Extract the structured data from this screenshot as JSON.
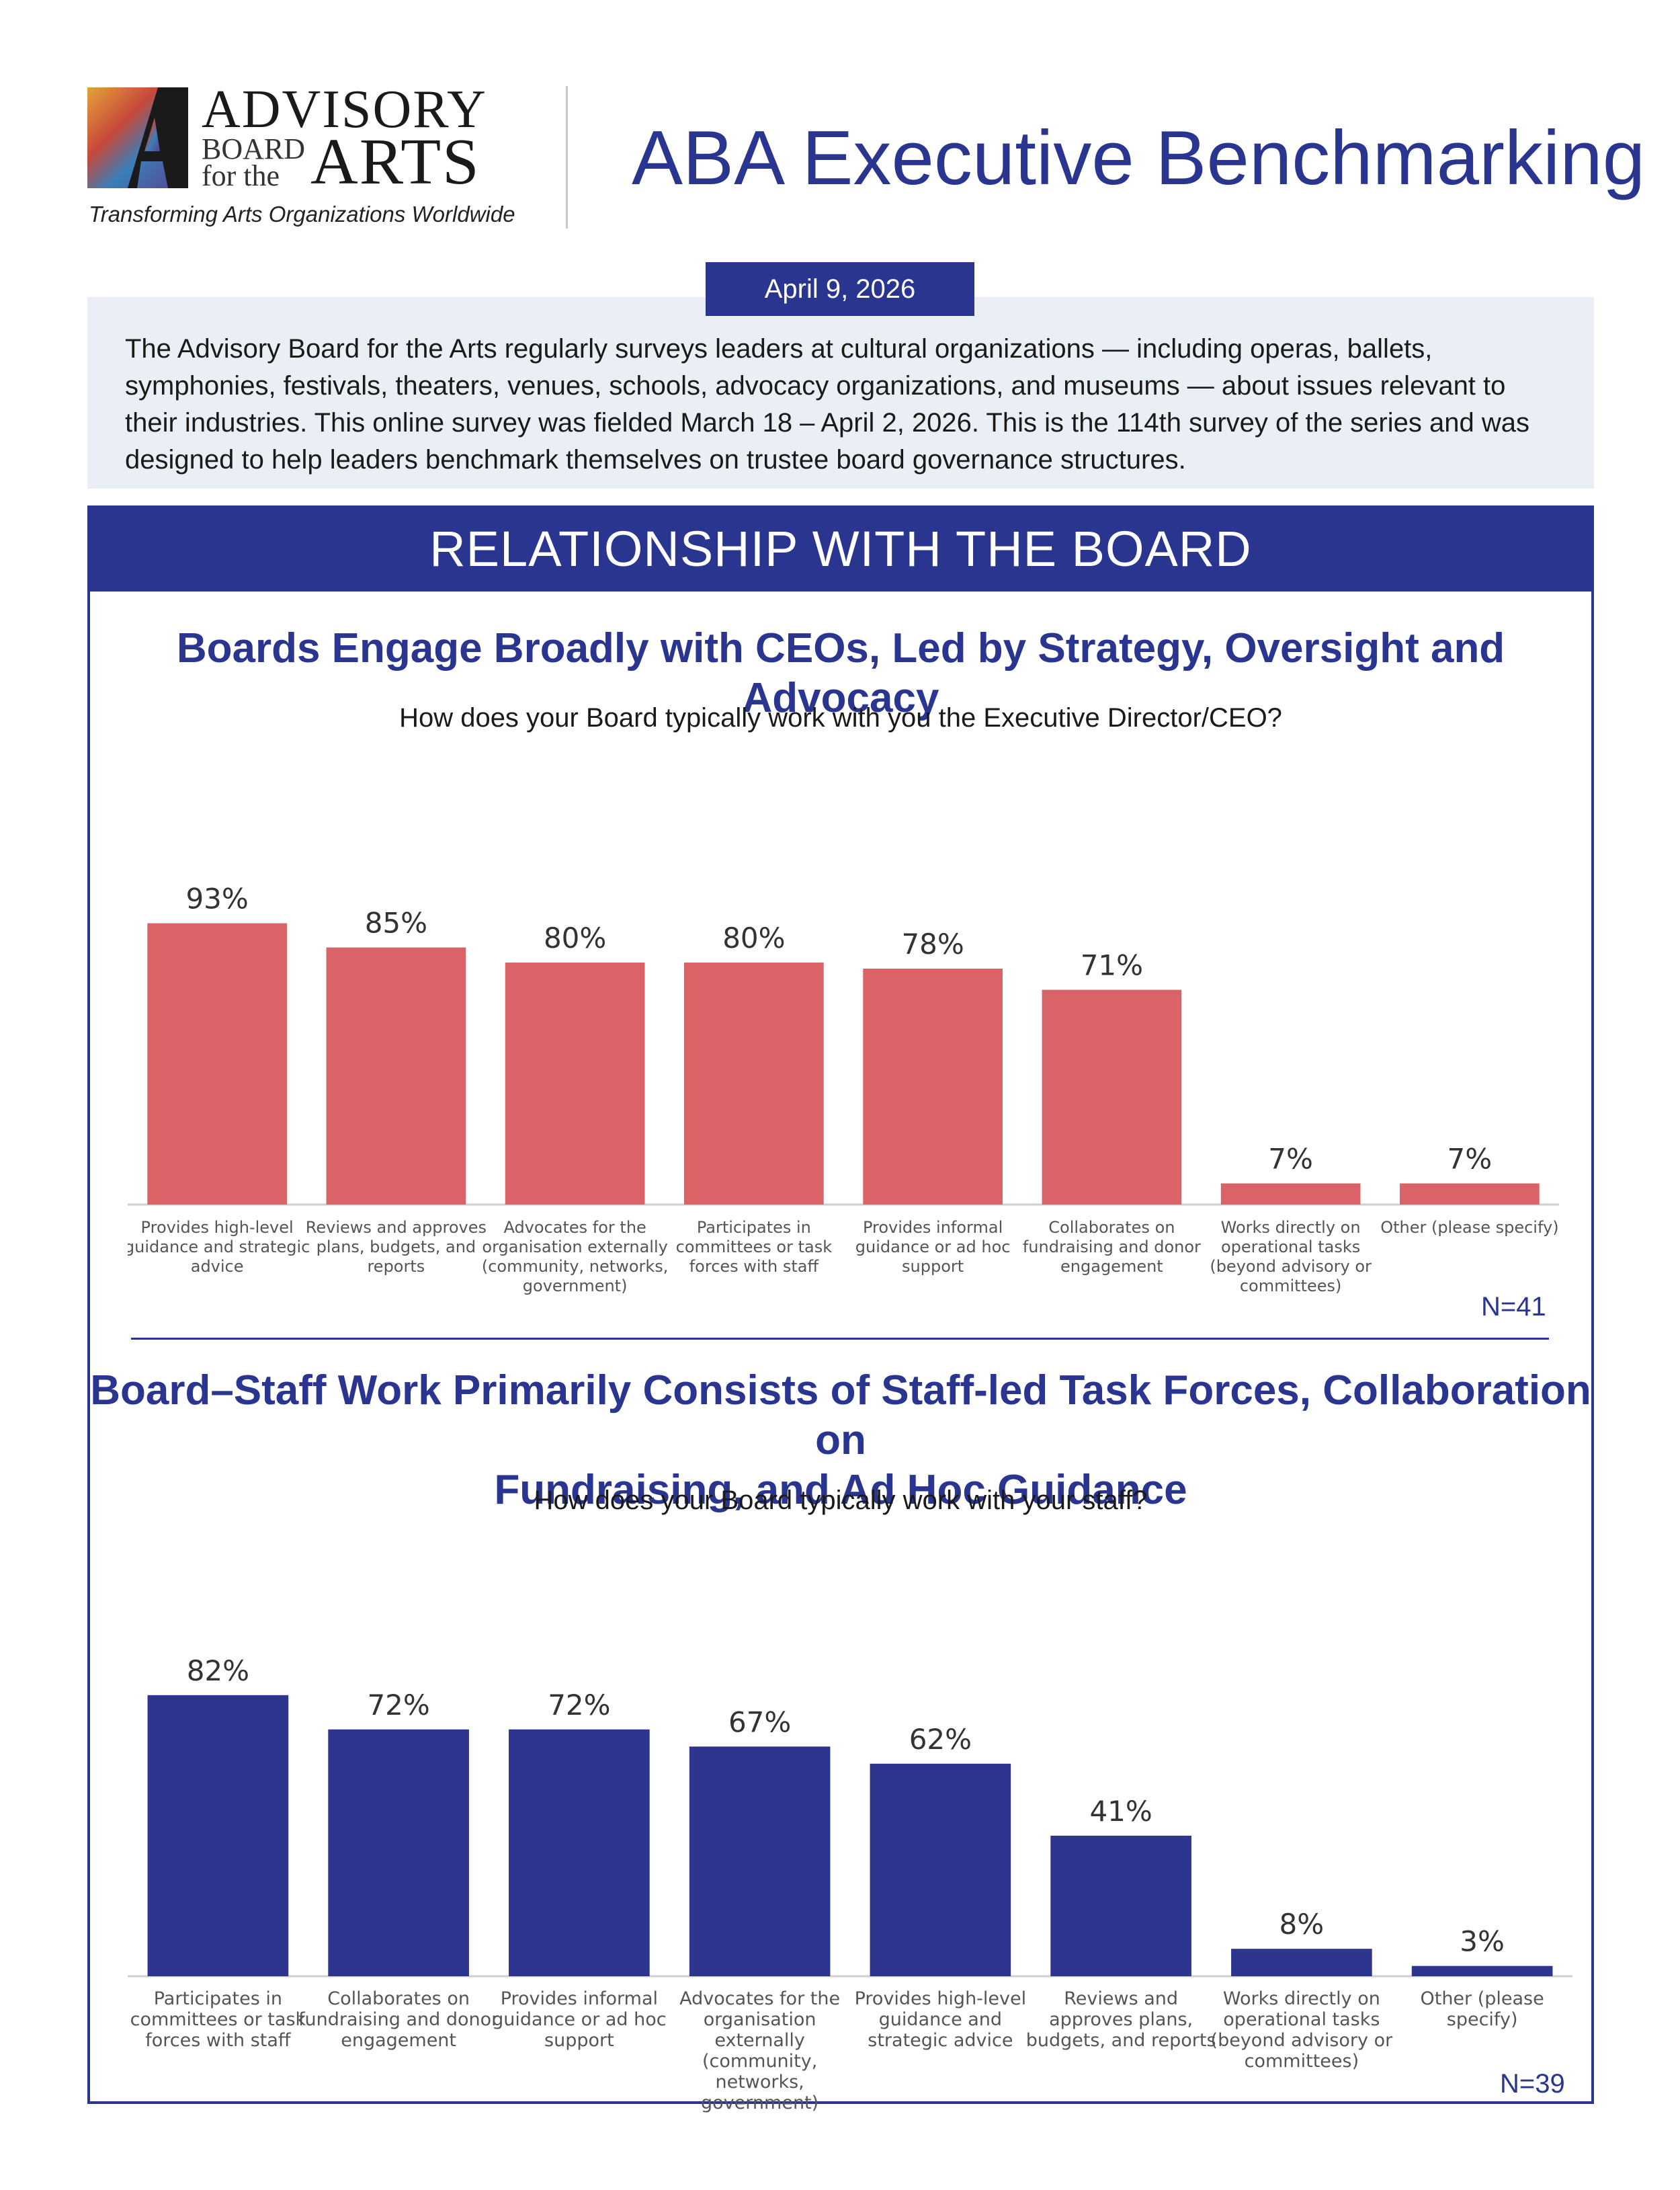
{
  "header": {
    "logo_icon": "advisory-board-logo-icon",
    "brand_line1": "ADVISORY",
    "brand_board": "BOARD",
    "brand_forthe": "for the",
    "brand_arts": "ARTS",
    "tagline": "Transforming Arts Organizations Worldwide",
    "title": "ABA Executive Benchmarking"
  },
  "date": "April 9, 2026",
  "intro": "The Advisory Board for the Arts regularly surveys leaders at cultural organizations — including operas, ballets, symphonies, festivals, theaters, venues, schools, advocacy organizations, and museums — about issues relevant to their industries. This online survey was fielded March 18 – April 2, 2026. This is the 114th survey of the series and was designed to help leaders benchmark themselves on trustee board governance structures.",
  "section_title": "RELATIONSHIP WITH THE BOARD",
  "colors": {
    "brand_blue": "#2a3590",
    "chart1_bar": "#d96366",
    "chart2_bar": "#2d358f"
  },
  "chart_data": [
    {
      "type": "bar",
      "title": "Boards Engage Broadly with CEOs, Led by Strategy, Oversight and Advocacy",
      "subtitle": "How does your Board typically work with you the Executive Director/CEO?",
      "categories": [
        "Provides high-level guidance and strategic advice",
        "Reviews and approves plans, budgets, and reports",
        "Advocates for the organisation externally (community, networks, government)",
        "Participates in committees or task forces with staff",
        "Provides informal guidance or ad hoc support",
        "Collaborates on fundraising and donor engagement",
        "Works directly on operational tasks (beyond advisory or committees)",
        "Other (please specify)"
      ],
      "category_lines": [
        [
          "Provides high-level",
          "guidance and strategic",
          "advice"
        ],
        [
          "Reviews and approves",
          "plans, budgets, and",
          "reports"
        ],
        [
          "Advocates for the",
          "organisation externally",
          "(community, networks,",
          "government)"
        ],
        [
          "Participates in",
          "committees or task",
          "forces with staff"
        ],
        [
          "Provides informal",
          "guidance or ad hoc",
          "support"
        ],
        [
          "Collaborates on",
          "fundraising and donor",
          "engagement"
        ],
        [
          "Works directly on",
          "operational tasks",
          "(beyond advisory or",
          "committees)"
        ],
        [
          "Other (please specify)"
        ]
      ],
      "values": [
        93,
        85,
        80,
        80,
        78,
        71,
        7,
        7
      ],
      "value_labels": [
        "93%",
        "85%",
        "80%",
        "80%",
        "78%",
        "71%",
        "7%",
        "7%"
      ],
      "ylim": [
        0,
        100
      ],
      "n_label": "N=41"
    },
    {
      "type": "bar",
      "title_lines": [
        "Board–Staff Work Primarily Consists of Staff-led Task Forces, Collaboration on",
        "Fundraising, and Ad Hoc Guidance"
      ],
      "subtitle": "How does your Board typically work with your staff?",
      "categories": [
        "Participates in committees or task forces with staff",
        "Collaborates on fundraising and donor engagement",
        "Provides informal guidance or ad hoc support",
        "Advocates for the organisation externally (community, networks, government)",
        "Provides high-level guidance and strategic advice",
        "Reviews and approves plans, budgets, and reports",
        "Works directly on operational tasks (beyond advisory or committees)",
        "Other (please specify)"
      ],
      "category_lines": [
        [
          "Participates in",
          "committees or task",
          "forces with staff"
        ],
        [
          "Collaborates on",
          "fundraising and donor",
          "engagement"
        ],
        [
          "Provides informal",
          "guidance or ad hoc",
          "support"
        ],
        [
          "Advocates for the",
          "organisation",
          "externally",
          "(community,",
          "networks,",
          "government)"
        ],
        [
          "Provides high-level",
          "guidance and",
          "strategic advice"
        ],
        [
          "Reviews and",
          "approves plans,",
          "budgets, and reports"
        ],
        [
          "Works directly on",
          "operational tasks",
          "(beyond advisory or",
          "committees)"
        ],
        [
          "Other (please",
          "specify)"
        ]
      ],
      "values": [
        82,
        72,
        72,
        67,
        62,
        41,
        8,
        3
      ],
      "value_labels": [
        "82%",
        "72%",
        "72%",
        "67%",
        "62%",
        "41%",
        "8%",
        "3%"
      ],
      "ylim": [
        0,
        100
      ],
      "n_label": "N=39"
    }
  ]
}
